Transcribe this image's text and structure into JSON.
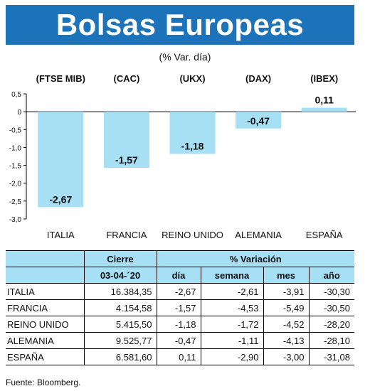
{
  "header": {
    "title": "Bolsas Europeas",
    "subtitle": "(% Var. día)"
  },
  "chart_data": {
    "type": "bar",
    "categories": [
      "ITALIA",
      "FRANCIA",
      "REINO UNIDO",
      "ALEMANIA",
      "ESPAÑA"
    ],
    "indices": [
      "(FTSE MIB)",
      "(CAC)",
      "(UKX)",
      "(DAX)",
      "(IBEX)"
    ],
    "values": [
      -2.67,
      -1.57,
      -1.18,
      -0.47,
      0.11
    ],
    "value_labels": [
      "-2,67",
      "-1,57",
      "-1,18",
      "-0,47",
      "0,11"
    ],
    "y_ticks": [
      "0,5",
      "0",
      "-0,5",
      "-1,0",
      "-1,5",
      "-2,0",
      "-2,5",
      "-3,0"
    ],
    "y_tick_values": [
      0.5,
      0,
      -0.5,
      -1.0,
      -1.5,
      -2.0,
      -2.5,
      -3.0
    ],
    "ylim": [
      -3.0,
      0.5
    ],
    "bar_color": "#a7dff5",
    "grid": false
  },
  "table": {
    "cierre_label": "Cierre",
    "variacion_label": "% Variación",
    "date": "03-04-´20",
    "columns": [
      "día",
      "semana",
      "mes",
      "año"
    ],
    "rows": [
      {
        "country": "ITALIA",
        "cierre": "16.384,35",
        "dia": "-2,67",
        "semana": "-2,61",
        "mes": "-3,91",
        "ano": "-30,30"
      },
      {
        "country": "FRANCIA",
        "cierre": "4.154,58",
        "dia": "-1,57",
        "semana": "-4,53",
        "mes": "-5,49",
        "ano": "-30,50"
      },
      {
        "country": "REINO UNIDO",
        "cierre": "5.415,50",
        "dia": "-1,18",
        "semana": "-1,72",
        "mes": "-4,52",
        "ano": "-28,20"
      },
      {
        "country": "ALEMANIA",
        "cierre": "9.525,77",
        "dia": "-0,47",
        "semana": "-1,11",
        "mes": "-4,13",
        "ano": "-28,10"
      },
      {
        "country": "ESPAÑA",
        "cierre": "6.581,60",
        "dia": "0,11",
        "semana": "-2,90",
        "mes": "-3,00",
        "ano": "-31,08"
      }
    ]
  },
  "source": "Fuente: Bloomberg."
}
